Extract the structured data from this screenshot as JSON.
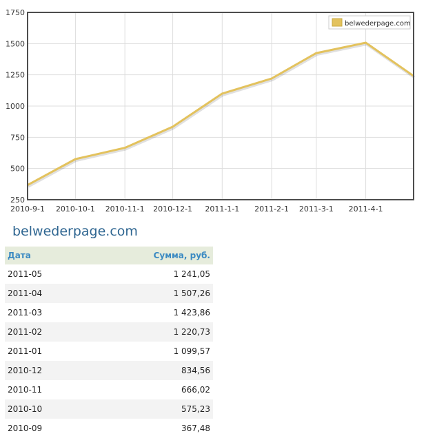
{
  "chart_data": {
    "type": "line",
    "x": [
      "2010-9-1",
      "2010-10-1",
      "2010-11-1",
      "2010-12-1",
      "2011-1-1",
      "2011-2-1",
      "2011-3-1",
      "2011-4-1",
      "2011-5-1"
    ],
    "xtick_labels": [
      "2010-9-1",
      "2010-10-1",
      "2010-11-1",
      "2010-12-1",
      "2011-1-1",
      "2011-2-1",
      "2011-3-1",
      "2011-4-1"
    ],
    "series": [
      {
        "name": "belwederpage.com",
        "color": "#e3c25d",
        "values": [
          367.48,
          575.23,
          666.02,
          834.56,
          1099.57,
          1220.73,
          1423.86,
          1507.26,
          1241.05
        ]
      }
    ],
    "ylim": [
      250,
      1750
    ],
    "yticks": [
      250,
      500,
      750,
      1000,
      1250,
      1500,
      1750
    ],
    "grid": true,
    "legend": "top-right",
    "title": "",
    "xlabel": "",
    "ylabel": ""
  },
  "site_title": "belwederpage.com",
  "table": {
    "headers": {
      "date": "Дата",
      "sum": "Сумма, руб."
    },
    "rows": [
      {
        "date": "2011-05",
        "sum": "1 241,05"
      },
      {
        "date": "2011-04",
        "sum": "1 507,26"
      },
      {
        "date": "2011-03",
        "sum": "1 423,86"
      },
      {
        "date": "2011-02",
        "sum": "1 220,73"
      },
      {
        "date": "2011-01",
        "sum": "1 099,57"
      },
      {
        "date": "2010-12",
        "sum": "834,56"
      },
      {
        "date": "2010-11",
        "sum": "666,02"
      },
      {
        "date": "2010-10",
        "sum": "575,23"
      },
      {
        "date": "2010-09",
        "sum": "367,48"
      }
    ]
  }
}
